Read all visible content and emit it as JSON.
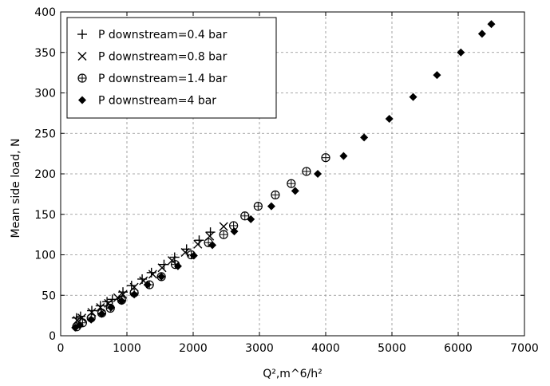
{
  "chart_data": {
    "type": "scatter",
    "title": "",
    "xlabel": "Q²,m^6/h²",
    "ylabel": "Mean side load, N",
    "xlim": [
      0,
      7000
    ],
    "ylim": [
      0,
      400
    ],
    "xticks": [
      "0",
      "1000",
      "2000",
      "3000",
      "4000",
      "5000",
      "6000",
      "7000"
    ],
    "yticks": [
      "0",
      "50",
      "100",
      "150",
      "200",
      "250",
      "300",
      "350",
      "400"
    ],
    "grid": true,
    "legend_position": "top-left",
    "series": [
      {
        "name": "P downstream=0.4 bar",
        "marker": "plus",
        "x": [
          240,
          300,
          470,
          600,
          700,
          780,
          940,
          1070,
          1230,
          1370,
          1560,
          1720,
          1900,
          2090,
          2260
        ],
        "y": [
          22,
          24,
          31,
          37,
          42,
          45,
          54,
          62,
          70,
          78,
          88,
          97,
          107,
          118,
          128
        ]
      },
      {
        "name": "P downstream=0.8 bar",
        "marker": "cross",
        "x": [
          250,
          320,
          470,
          600,
          720,
          860,
          940,
          1110,
          1250,
          1390,
          1530,
          1680,
          1880,
          2070,
          2250,
          2460
        ],
        "y": [
          19,
          22,
          29,
          35,
          40,
          47,
          51,
          60,
          68,
          76,
          84,
          93,
          103,
          113,
          123,
          135
        ]
      },
      {
        "name": "P downstream=1.4 bar",
        "marker": "circle-plus",
        "x": [
          240,
          330,
          460,
          620,
          750,
          920,
          1110,
          1340,
          1520,
          1730,
          1970,
          2230,
          2460,
          2610,
          2780,
          2980,
          3240,
          3480,
          3710,
          4000
        ],
        "y": [
          11,
          16,
          22,
          28,
          34,
          44,
          53,
          63,
          73,
          88,
          100,
          115,
          125,
          136,
          148,
          160,
          174,
          188,
          203,
          220
        ]
      },
      {
        "name": "P downstream=4 bar",
        "marker": "diamond",
        "x": [
          220,
          290,
          460,
          620,
          760,
          920,
          1110,
          1310,
          1520,
          1770,
          2010,
          2290,
          2620,
          2870,
          3180,
          3540,
          3880,
          4270,
          4580,
          4960,
          5320,
          5680,
          6040,
          6360,
          6500
        ],
        "y": [
          10,
          13,
          20,
          27,
          35,
          43,
          51,
          63,
          73,
          86,
          99,
          112,
          129,
          144,
          160,
          179,
          200,
          222,
          245,
          268,
          295,
          322,
          350,
          373,
          385
        ]
      }
    ]
  }
}
